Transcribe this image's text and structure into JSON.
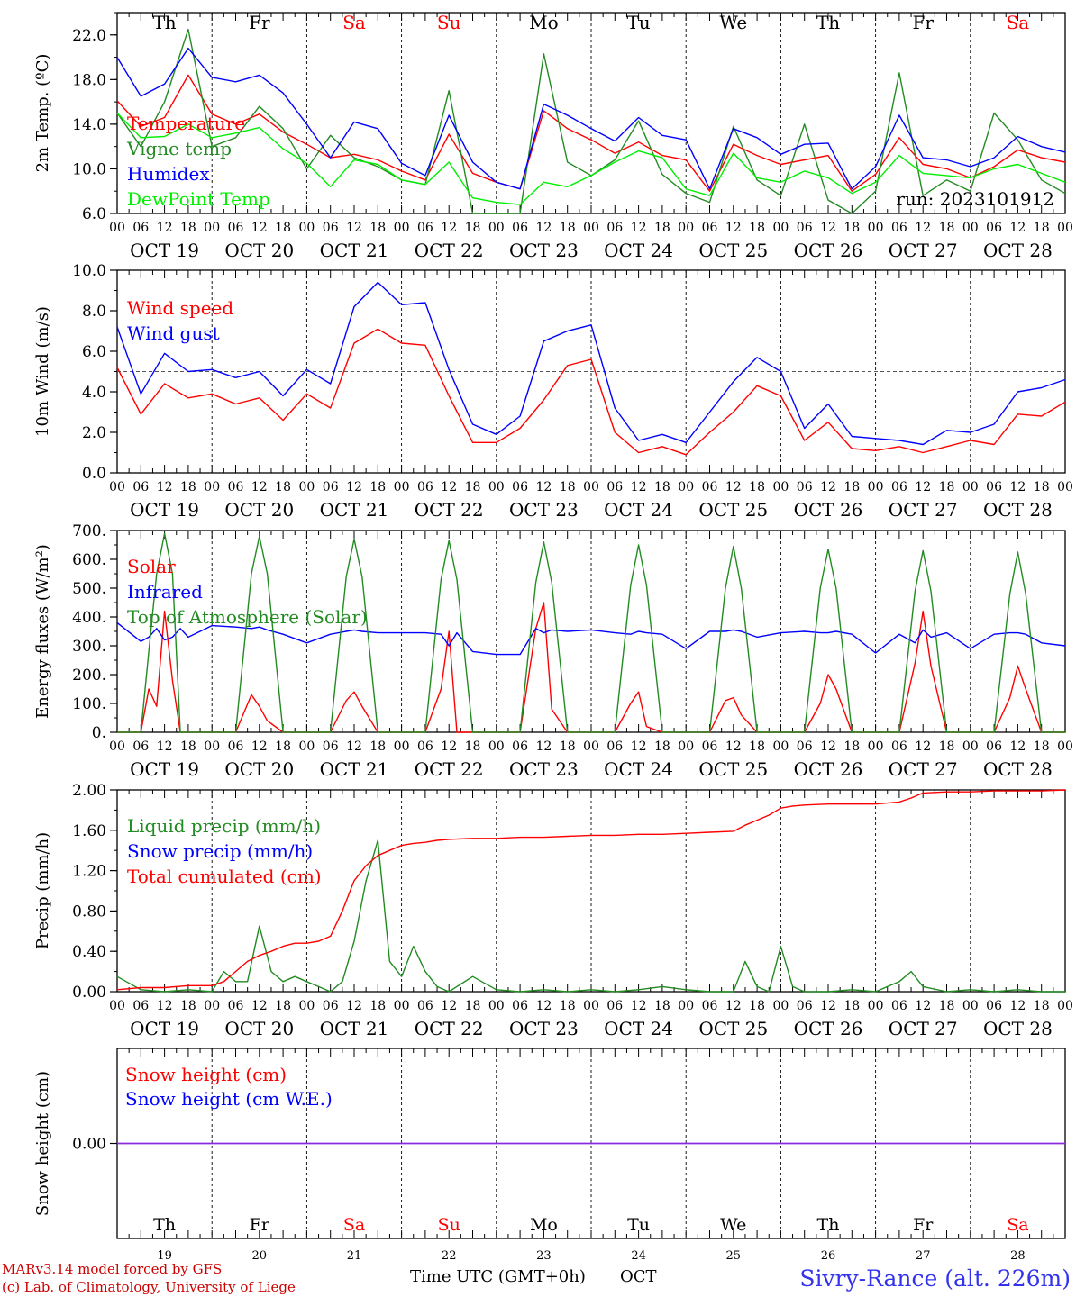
{
  "days": [
    {
      "dow": "Th",
      "color": "#000000",
      "date": "OCT 19",
      "num": "19"
    },
    {
      "dow": "Fr",
      "color": "#000000",
      "date": "OCT 20",
      "num": "20"
    },
    {
      "dow": "Sa",
      "color": "#ff0000",
      "date": "OCT 21",
      "num": "21"
    },
    {
      "dow": "Su",
      "color": "#ff0000",
      "date": "OCT 22",
      "num": "22"
    },
    {
      "dow": "Mo",
      "color": "#000000",
      "date": "OCT 23",
      "num": "23"
    },
    {
      "dow": "Tu",
      "color": "#000000",
      "date": "OCT 24",
      "num": "24"
    },
    {
      "dow": "We",
      "color": "#000000",
      "date": "OCT 25",
      "num": "25"
    },
    {
      "dow": "Th",
      "color": "#000000",
      "date": "OCT 26",
      "num": "26"
    },
    {
      "dow": "Fr",
      "color": "#000000",
      "date": "OCT 27",
      "num": "27"
    },
    {
      "dow": "Sa",
      "color": "#ff0000",
      "date": "OCT 28",
      "num": "28"
    }
  ],
  "hour_ticks": [
    "00",
    "06",
    "12",
    "18"
  ],
  "hour_tick_end": "00",
  "footer": {
    "model": "MARv3.14 model forced by GFS",
    "lab": "(c) Lab. of Climatology, University of Liege",
    "time_label": "Time UTC (GMT+0h)",
    "month": "OCT",
    "station": "Sivry-Rance (alt. 226m)"
  },
  "run_label": "run: 2023101912",
  "chart_data": [
    {
      "type": "line",
      "ylabel": "2m Temp. (ºC)",
      "ylim": [
        6.0,
        24.0
      ],
      "yticks": [
        "6.0",
        "10.0",
        "14.0",
        "18.0",
        "22.0"
      ],
      "yticks_values": [
        6,
        10,
        14,
        18,
        22
      ],
      "x_hours": [
        0,
        6,
        12,
        18,
        24,
        30,
        36,
        42,
        48,
        54,
        60,
        66,
        72,
        78,
        84,
        90,
        96,
        102,
        108,
        114,
        120,
        126,
        132,
        138,
        144,
        150,
        156,
        162,
        168,
        174,
        180,
        186,
        192,
        198,
        204,
        210,
        216,
        222,
        228,
        234,
        240
      ],
      "series": [
        {
          "name": "Temperature",
          "color": "#ff0000",
          "values": [
            16.1,
            13.8,
            14.6,
            18.4,
            14.9,
            14.0,
            14.9,
            13.3,
            12.2,
            11.0,
            11.3,
            10.8,
            9.8,
            9.0,
            13.1,
            9.6,
            8.8,
            8.2,
            15.2,
            13.6,
            12.6,
            11.4,
            12.4,
            11.2,
            10.8,
            8.0,
            12.2,
            11.2,
            10.4,
            10.8,
            11.2,
            8.0,
            9.5,
            12.8,
            10.4,
            10.0,
            9.2,
            10.2,
            11.7,
            11.0,
            10.6
          ]
        },
        {
          "name": "Vigne temp",
          "color": "#228b22",
          "values": [
            15.0,
            12.0,
            16.0,
            22.5,
            12.0,
            12.8,
            15.6,
            13.6,
            10.0,
            13.0,
            11.0,
            10.2,
            9.0,
            8.6,
            17.0,
            6.0,
            6.0,
            6.0,
            20.3,
            10.6,
            9.4,
            10.8,
            14.3,
            9.5,
            7.8,
            7.0,
            13.8,
            9.0,
            7.6,
            14.0,
            7.2,
            6.0,
            8.0,
            18.6,
            7.6,
            9.0,
            8.0,
            15.0,
            12.6,
            9.0,
            7.8
          ]
        },
        {
          "name": "Humidex",
          "color": "#0000ff",
          "values": [
            20.0,
            16.5,
            17.6,
            20.8,
            18.2,
            17.8,
            18.4,
            16.8,
            14.0,
            11.0,
            14.2,
            13.6,
            10.5,
            9.4,
            14.8,
            10.6,
            8.8,
            8.2,
            15.8,
            14.8,
            13.6,
            12.5,
            14.6,
            13.0,
            12.6,
            8.2,
            13.6,
            12.8,
            11.3,
            12.2,
            12.3,
            8.2,
            10.2,
            14.8,
            11.0,
            10.8,
            10.2,
            11.0,
            12.9,
            12.0,
            11.5
          ]
        },
        {
          "name": "DewPoint Temp",
          "color": "#00ee00",
          "values": [
            15.0,
            12.8,
            12.9,
            14.0,
            12.8,
            13.2,
            13.7,
            11.8,
            10.5,
            8.4,
            10.8,
            10.4,
            9.0,
            8.6,
            10.6,
            7.4,
            7.0,
            6.8,
            8.8,
            8.4,
            9.4,
            10.6,
            11.6,
            11.0,
            8.2,
            7.6,
            11.4,
            9.2,
            8.8,
            9.8,
            9.2,
            7.8,
            8.8,
            11.2,
            9.6,
            9.4,
            9.2,
            10.0,
            10.4,
            9.6,
            8.8
          ]
        }
      ]
    },
    {
      "type": "line",
      "ylabel": "10m Wind (m/s)",
      "ylim": [
        0.0,
        10.0
      ],
      "yticks": [
        "0.0",
        "2.0",
        "4.0",
        "6.0",
        "8.0",
        "10.0"
      ],
      "yticks_values": [
        0,
        2,
        4,
        6,
        8,
        10
      ],
      "reference_line": 5.0,
      "x_hours": [
        0,
        6,
        12,
        18,
        24,
        30,
        36,
        42,
        48,
        54,
        60,
        66,
        72,
        78,
        84,
        90,
        96,
        102,
        108,
        114,
        120,
        126,
        132,
        138,
        144,
        150,
        156,
        162,
        168,
        174,
        180,
        186,
        192,
        198,
        204,
        210,
        216,
        222,
        228,
        234,
        240
      ],
      "series": [
        {
          "name": "Wind speed",
          "color": "#ff0000",
          "values": [
            5.2,
            2.9,
            4.4,
            3.7,
            3.9,
            3.4,
            3.7,
            2.6,
            3.9,
            3.2,
            6.4,
            7.1,
            6.4,
            6.3,
            3.8,
            1.5,
            1.5,
            2.2,
            3.6,
            5.3,
            5.6,
            2.0,
            1.0,
            1.3,
            0.9,
            2.0,
            3.0,
            4.3,
            3.8,
            1.6,
            2.5,
            1.2,
            1.1,
            1.3,
            1.0,
            1.3,
            1.6,
            1.4,
            2.9,
            2.8,
            3.5
          ]
        },
        {
          "name": "Wind gust",
          "color": "#0000ff",
          "values": [
            7.2,
            3.9,
            5.9,
            5.0,
            5.1,
            4.7,
            5.0,
            3.8,
            5.1,
            4.4,
            8.2,
            9.4,
            8.3,
            8.4,
            5.1,
            2.4,
            1.9,
            2.8,
            6.5,
            7.0,
            7.3,
            3.2,
            1.6,
            1.9,
            1.5,
            3.0,
            4.5,
            5.7,
            5.0,
            2.2,
            3.4,
            1.8,
            1.7,
            1.6,
            1.4,
            2.1,
            2.0,
            2.4,
            4.0,
            4.2,
            4.6
          ]
        }
      ]
    },
    {
      "type": "line",
      "ylabel": "Energy fluxes (W/m²)",
      "ylim": [
        0,
        700
      ],
      "yticks": [
        "0.",
        "100.",
        "200.",
        "300.",
        "400.",
        "500.",
        "600.",
        "700."
      ],
      "yticks_values": [
        0,
        100,
        200,
        300,
        400,
        500,
        600,
        700
      ],
      "x_hours": [
        0,
        6,
        8,
        10,
        12,
        14,
        16,
        18,
        24,
        30,
        34,
        36,
        38,
        42,
        48,
        54,
        58,
        60,
        62,
        66,
        72,
        78,
        82,
        84,
        86,
        90,
        96,
        102,
        106,
        108,
        110,
        114,
        120,
        126,
        130,
        132,
        134,
        138,
        144,
        150,
        154,
        156,
        158,
        162,
        168,
        174,
        178,
        180,
        182,
        186,
        192,
        198,
        202,
        204,
        206,
        210,
        216,
        222,
        226,
        228,
        230,
        234,
        240
      ],
      "series": [
        {
          "name": "Solar",
          "color": "#ff0000",
          "values": [
            0,
            0,
            150,
            90,
            420,
            180,
            0,
            0,
            0,
            0,
            130,
            90,
            40,
            0,
            0,
            0,
            110,
            140,
            90,
            0,
            0,
            0,
            150,
            350,
            0,
            0,
            0,
            0,
            360,
            450,
            80,
            0,
            0,
            0,
            100,
            140,
            20,
            0,
            0,
            0,
            110,
            120,
            60,
            0,
            0,
            0,
            100,
            200,
            150,
            0,
            0,
            0,
            240,
            420,
            230,
            0,
            0,
            0,
            120,
            230,
            150,
            0,
            0
          ]
        },
        {
          "name": "Infrared",
          "color": "#0000ff",
          "values": [
            380,
            315,
            330,
            360,
            320,
            330,
            360,
            330,
            370,
            365,
            360,
            365,
            355,
            340,
            310,
            340,
            350,
            355,
            350,
            345,
            345,
            345,
            340,
            300,
            345,
            280,
            270,
            270,
            360,
            345,
            355,
            350,
            355,
            345,
            340,
            350,
            345,
            340,
            290,
            350,
            350,
            355,
            350,
            330,
            345,
            350,
            345,
            345,
            350,
            340,
            275,
            340,
            310,
            355,
            330,
            345,
            290,
            340,
            345,
            345,
            340,
            310,
            300
          ]
        },
        {
          "name": "Top of Atmosphere (Solar)",
          "color": "#228b22",
          "values": [
            0,
            0,
            280,
            550,
            690,
            550,
            0,
            0,
            0,
            0,
            550,
            680,
            550,
            0,
            0,
            0,
            540,
            670,
            540,
            0,
            0,
            0,
            530,
            665,
            530,
            0,
            0,
            0,
            520,
            660,
            520,
            0,
            0,
            0,
            510,
            650,
            510,
            0,
            0,
            0,
            500,
            645,
            500,
            0,
            0,
            0,
            500,
            635,
            500,
            0,
            0,
            0,
            490,
            630,
            490,
            0,
            0,
            0,
            480,
            625,
            480,
            0,
            0
          ]
        }
      ]
    },
    {
      "type": "line",
      "ylabel": "Precip (mm/h)",
      "ylim": [
        0.0,
        2.0
      ],
      "yticks": [
        "0.00",
        "0.40",
        "0.80",
        "1.20",
        "1.60",
        "2.00"
      ],
      "yticks_values": [
        0,
        0.4,
        0.8,
        1.2,
        1.6,
        2.0
      ],
      "x_hours": [
        0,
        6,
        12,
        18,
        24,
        27,
        30,
        33,
        36,
        39,
        42,
        45,
        48,
        51,
        54,
        57,
        60,
        63,
        66,
        69,
        72,
        75,
        78,
        81,
        84,
        90,
        96,
        102,
        108,
        114,
        120,
        126,
        132,
        138,
        144,
        150,
        156,
        159,
        162,
        165,
        168,
        171,
        174,
        180,
        186,
        192,
        198,
        201,
        204,
        210,
        216,
        222,
        228,
        234,
        240
      ],
      "series": [
        {
          "name": "Liquid precip (mm/h)",
          "color": "#228b22",
          "values": [
            0.15,
            0.02,
            0.0,
            0.02,
            0.0,
            0.2,
            0.1,
            0.1,
            0.65,
            0.2,
            0.1,
            0.15,
            0.1,
            0.05,
            0.0,
            0.1,
            0.5,
            1.1,
            1.5,
            0.3,
            0.15,
            0.45,
            0.2,
            0.05,
            0.0,
            0.15,
            0.02,
            0.0,
            0.02,
            0.0,
            0.02,
            0.0,
            0.02,
            0.05,
            0.02,
            0.0,
            0.0,
            0.3,
            0.05,
            0.0,
            0.45,
            0.05,
            0.0,
            0.0,
            0.02,
            0.0,
            0.1,
            0.2,
            0.05,
            0.0,
            0.02,
            0.0,
            0.02,
            0.0,
            0.0
          ]
        },
        {
          "name": "Snow precip (mm/h)",
          "color": "#0000ff",
          "values": []
        },
        {
          "name": "Total cumulated (cm)",
          "color": "#ff0000",
          "values": [
            0.02,
            0.04,
            0.04,
            0.06,
            0.06,
            0.1,
            0.2,
            0.3,
            0.36,
            0.4,
            0.45,
            0.48,
            0.48,
            0.5,
            0.55,
            0.8,
            1.1,
            1.25,
            1.35,
            1.4,
            1.45,
            1.47,
            1.48,
            1.5,
            1.51,
            1.52,
            1.52,
            1.53,
            1.53,
            1.54,
            1.55,
            1.55,
            1.56,
            1.56,
            1.57,
            1.58,
            1.59,
            1.65,
            1.7,
            1.75,
            1.82,
            1.84,
            1.85,
            1.86,
            1.86,
            1.86,
            1.88,
            1.92,
            1.97,
            1.98,
            1.98,
            1.99,
            1.99,
            1.99,
            2.0
          ]
        }
      ]
    },
    {
      "type": "line",
      "ylabel": "Snow height (cm)",
      "ylim": [
        -1.0,
        1.0
      ],
      "yticks": [
        "0.00"
      ],
      "yticks_values": [
        0
      ],
      "x_hours": [
        0,
        240
      ],
      "series": [
        {
          "name": "Snow height (cm)",
          "color": "#ff0000",
          "values": [
            0,
            0
          ]
        },
        {
          "name": "Snow height (cm W.E.)",
          "color": "#0000ff",
          "values": [
            0,
            0
          ]
        }
      ]
    }
  ]
}
